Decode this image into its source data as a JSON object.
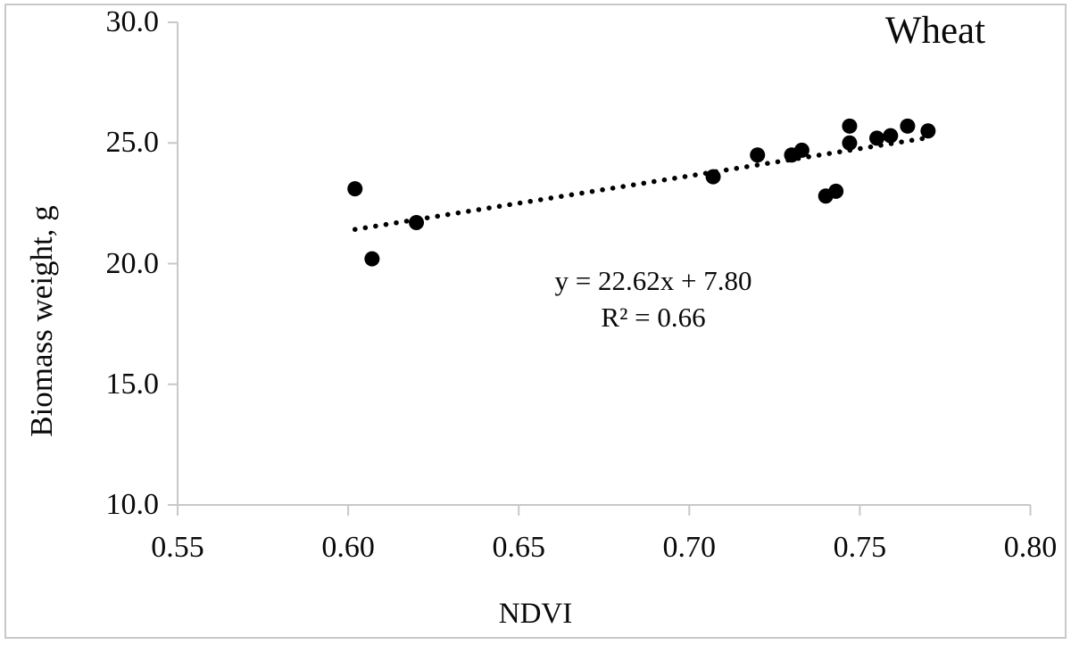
{
  "figure": {
    "border_color": "#c9c9c9",
    "background_color": "#ffffff"
  },
  "chart_data": {
    "type": "scatter",
    "title": "Wheat",
    "xlabel": "NDVI",
    "ylabel": "Biomass weight, g",
    "xlim": [
      0.55,
      0.8
    ],
    "ylim": [
      10.0,
      30.0
    ],
    "xticks": [
      0.55,
      0.6,
      0.65,
      0.7,
      0.75,
      0.8
    ],
    "yticks": [
      10.0,
      15.0,
      20.0,
      25.0,
      30.0
    ],
    "xtick_labels": [
      "0.55",
      "0.60",
      "0.65",
      "0.70",
      "0.75",
      "0.80"
    ],
    "ytick_labels": [
      "10.0",
      "15.0",
      "20.0",
      "25.0",
      "30.0"
    ],
    "grid": false,
    "legend": "none",
    "marker_color": "#000000",
    "axis_color": "#c8c8c8",
    "points": [
      [
        0.602,
        23.1
      ],
      [
        0.607,
        20.2
      ],
      [
        0.62,
        21.7
      ],
      [
        0.707,
        23.6
      ],
      [
        0.72,
        24.5
      ],
      [
        0.73,
        24.5
      ],
      [
        0.733,
        24.7
      ],
      [
        0.74,
        22.8
      ],
      [
        0.743,
        23.0
      ],
      [
        0.747,
        25.0
      ],
      [
        0.747,
        25.7
      ],
      [
        0.755,
        25.2
      ],
      [
        0.759,
        25.3
      ],
      [
        0.764,
        25.7
      ],
      [
        0.77,
        25.5
      ]
    ],
    "trendline": {
      "slope": 22.62,
      "intercept": 7.8,
      "x_start": 0.602,
      "x_end": 0.769,
      "style": "dotted"
    },
    "annotations": [
      "y = 22.62x + 7.80",
      "R² = 0.66"
    ]
  }
}
